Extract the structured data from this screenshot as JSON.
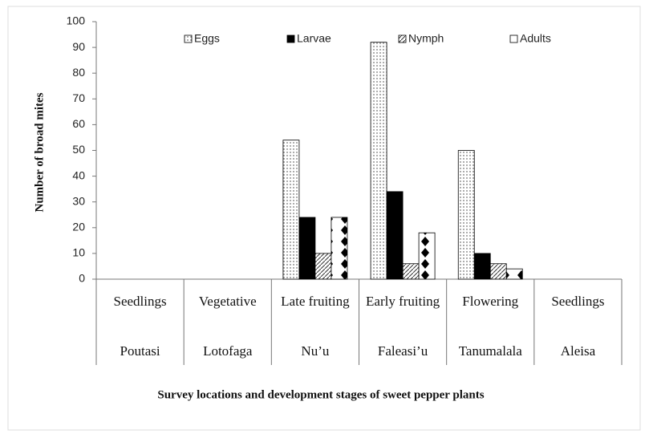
{
  "chart_data": {
    "type": "bar",
    "y_label": "Number of broad mites",
    "x_label": "Survey locations and development stages of sweet pepper plants",
    "categories": [
      "Seedlings",
      "Vegetative",
      "Late fruiting",
      "Early fruiting",
      "Flowering",
      "Seedlings"
    ],
    "locations": [
      "Poutasi",
      "Lotofaga",
      "Nu’u",
      "Faleasi’u",
      "Tanumalala",
      "Aleisa"
    ],
    "series": [
      {
        "name": "Eggs",
        "color": "#ffffff",
        "pattern": "dots",
        "values": [
          0,
          0,
          54,
          92,
          50,
          0
        ]
      },
      {
        "name": "Larvae",
        "color": "#000000",
        "pattern": "solid",
        "values": [
          0,
          0,
          24,
          34,
          10,
          0
        ]
      },
      {
        "name": "Nymph",
        "color": "#ffffff",
        "pattern": "hatch",
        "values": [
          0,
          0,
          10,
          6,
          6,
          0
        ]
      },
      {
        "name": "Adults",
        "color": "#ffffff",
        "pattern": "diamonds",
        "values": [
          0,
          0,
          24,
          18,
          4,
          0
        ]
      }
    ],
    "ylim": [
      0,
      100
    ],
    "yticks": [
      0,
      10,
      20,
      30,
      40,
      50,
      60,
      70,
      80,
      90,
      100
    ],
    "legend": "top"
  }
}
